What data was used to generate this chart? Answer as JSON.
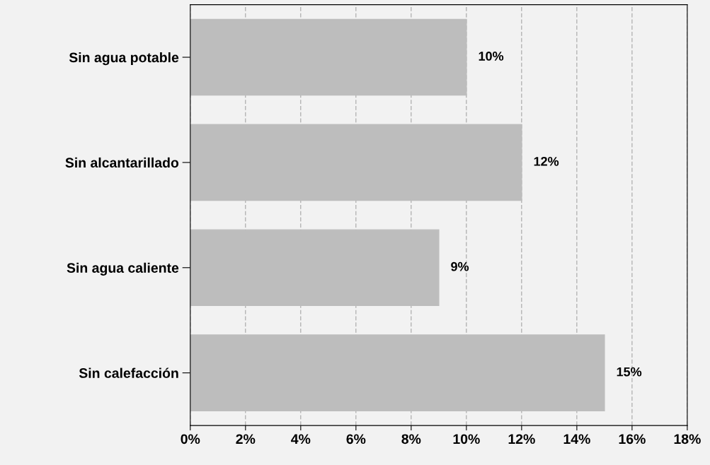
{
  "chart_data": {
    "type": "bar",
    "orientation": "horizontal",
    "categories": [
      "Sin agua potable",
      "Sin alcantarillado",
      "Sin agua caliente",
      "Sin calefacción"
    ],
    "values": [
      10,
      12,
      9,
      15
    ],
    "value_labels": [
      "10%",
      "12%",
      "9%",
      "15%"
    ],
    "color": "#bdbdbd",
    "xlim": [
      0,
      18
    ],
    "xticks": [
      {
        "value": 0,
        "label": "0%"
      },
      {
        "value": 2,
        "label": "2%"
      },
      {
        "value": 4,
        "label": "4%"
      },
      {
        "value": 6,
        "label": "6%"
      },
      {
        "value": 8,
        "label": "8%"
      },
      {
        "value": 10,
        "label": "10%"
      },
      {
        "value": 12,
        "label": "12%"
      },
      {
        "value": 14,
        "label": "14%"
      },
      {
        "value": 16,
        "label": "16%"
      },
      {
        "value": 18,
        "label": "18%"
      }
    ],
    "grid": "x",
    "legend": false
  }
}
